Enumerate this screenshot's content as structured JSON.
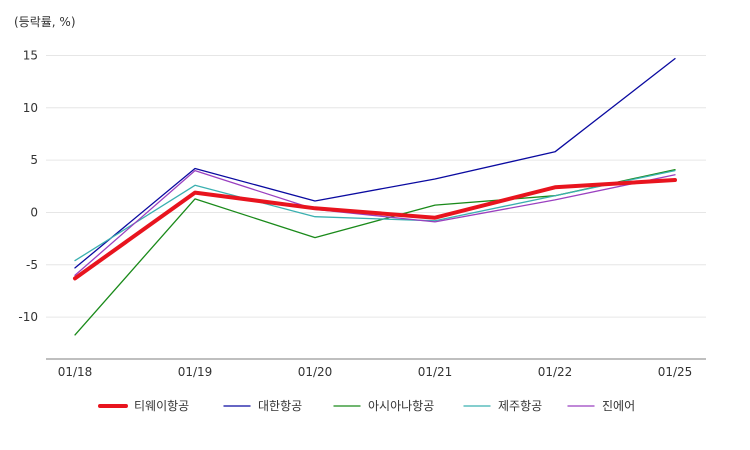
{
  "chart_data": {
    "type": "line",
    "unit_label": "(등락률, %)",
    "categories": [
      "01/18",
      "01/19",
      "01/20",
      "01/21",
      "01/22",
      "01/25"
    ],
    "y_ticks": [
      15,
      10,
      5,
      0,
      -5,
      -10
    ],
    "ylim": [
      -14,
      16
    ],
    "grid": true,
    "legend_position": "bottom",
    "series": [
      {
        "name": "대한항공",
        "color": "#0a0aa0",
        "width": 1.3,
        "values": [
          -5.3,
          4.2,
          1.1,
          3.2,
          5.8,
          14.7
        ]
      },
      {
        "name": "아시아나항공",
        "color": "#1a8a1a",
        "width": 1.3,
        "values": [
          -11.7,
          1.3,
          -2.4,
          0.7,
          1.6,
          4.1
        ]
      },
      {
        "name": "제주항공",
        "color": "#3ab0b0",
        "width": 1.3,
        "values": [
          -4.6,
          2.6,
          -0.4,
          -0.8,
          1.6,
          4.0
        ]
      },
      {
        "name": "진에어",
        "color": "#9a40c0",
        "width": 1.3,
        "values": [
          -6.0,
          4.0,
          0.3,
          -0.9,
          1.2,
          3.6
        ]
      },
      {
        "name": "티웨이항공",
        "color": "#e8141e",
        "width": 4,
        "values": [
          -6.3,
          1.9,
          0.4,
          -0.5,
          2.4,
          3.1
        ]
      }
    ],
    "legend_order": [
      "티웨이항공",
      "대한항공",
      "아시아나항공",
      "제주항공",
      "진에어"
    ]
  }
}
